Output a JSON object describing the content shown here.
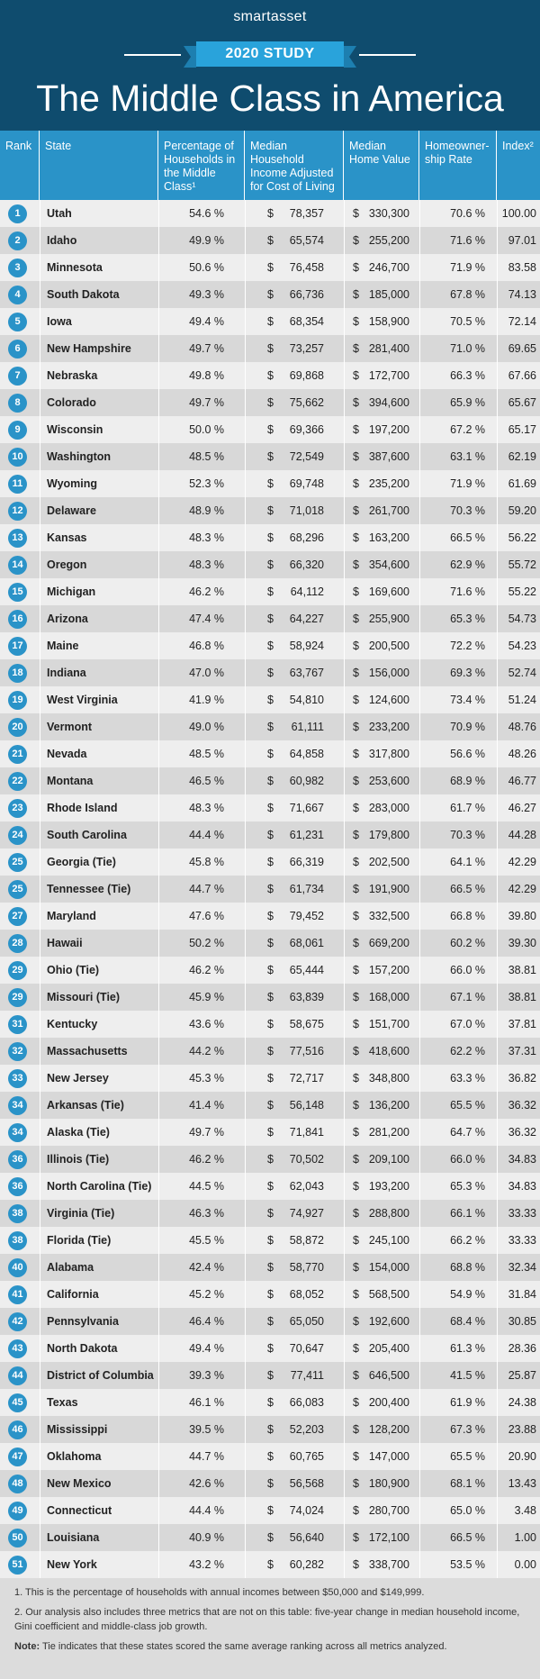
{
  "header": {
    "brand": "smartasset",
    "badge": "2020 STUDY",
    "title": "The Middle Class in America"
  },
  "columns": {
    "rank": "Rank",
    "state": "State",
    "pct": "Percentage of Households in the Middle Class¹",
    "income": "Median Household Income Adjusted for Cost of Living",
    "home": "Median Home Value",
    "own": "Homeowner- ship Rate",
    "index": "Index²"
  },
  "colors": {
    "header_bg": "#0f4c6e",
    "accent": "#2a93c8",
    "badge": "#29a3db"
  },
  "rows": [
    {
      "rank": "1",
      "state": "Utah",
      "pct": "54.6 %",
      "income": "78,357",
      "home": "330,300",
      "own": "70.6 %",
      "index": "100.00"
    },
    {
      "rank": "2",
      "state": "Idaho",
      "pct": "49.9 %",
      "income": "65,574",
      "home": "255,200",
      "own": "71.6 %",
      "index": "97.01"
    },
    {
      "rank": "3",
      "state": "Minnesota",
      "pct": "50.6 %",
      "income": "76,458",
      "home": "246,700",
      "own": "71.9 %",
      "index": "83.58"
    },
    {
      "rank": "4",
      "state": "South Dakota",
      "pct": "49.3 %",
      "income": "66,736",
      "home": "185,000",
      "own": "67.8 %",
      "index": "74.13"
    },
    {
      "rank": "5",
      "state": "Iowa",
      "pct": "49.4 %",
      "income": "68,354",
      "home": "158,900",
      "own": "70.5 %",
      "index": "72.14"
    },
    {
      "rank": "6",
      "state": "New Hampshire",
      "pct": "49.7 %",
      "income": "73,257",
      "home": "281,400",
      "own": "71.0 %",
      "index": "69.65"
    },
    {
      "rank": "7",
      "state": "Nebraska",
      "pct": "49.8 %",
      "income": "69,868",
      "home": "172,700",
      "own": "66.3 %",
      "index": "67.66"
    },
    {
      "rank": "8",
      "state": "Colorado",
      "pct": "49.7 %",
      "income": "75,662",
      "home": "394,600",
      "own": "65.9 %",
      "index": "65.67"
    },
    {
      "rank": "9",
      "state": "Wisconsin",
      "pct": "50.0 %",
      "income": "69,366",
      "home": "197,200",
      "own": "67.2 %",
      "index": "65.17"
    },
    {
      "rank": "10",
      "state": "Washington",
      "pct": "48.5 %",
      "income": "72,549",
      "home": "387,600",
      "own": "63.1 %",
      "index": "62.19"
    },
    {
      "rank": "11",
      "state": "Wyoming",
      "pct": "52.3 %",
      "income": "69,748",
      "home": "235,200",
      "own": "71.9 %",
      "index": "61.69"
    },
    {
      "rank": "12",
      "state": "Delaware",
      "pct": "48.9 %",
      "income": "71,018",
      "home": "261,700",
      "own": "70.3 %",
      "index": "59.20"
    },
    {
      "rank": "13",
      "state": "Kansas",
      "pct": "48.3 %",
      "income": "68,296",
      "home": "163,200",
      "own": "66.5 %",
      "index": "56.22"
    },
    {
      "rank": "14",
      "state": "Oregon",
      "pct": "48.3 %",
      "income": "66,320",
      "home": "354,600",
      "own": "62.9 %",
      "index": "55.72"
    },
    {
      "rank": "15",
      "state": "Michigan",
      "pct": "46.2 %",
      "income": "64,112",
      "home": "169,600",
      "own": "71.6 %",
      "index": "55.22"
    },
    {
      "rank": "16",
      "state": "Arizona",
      "pct": "47.4 %",
      "income": "64,227",
      "home": "255,900",
      "own": "65.3 %",
      "index": "54.73"
    },
    {
      "rank": "17",
      "state": "Maine",
      "pct": "46.8 %",
      "income": "58,924",
      "home": "200,500",
      "own": "72.2 %",
      "index": "54.23"
    },
    {
      "rank": "18",
      "state": "Indiana",
      "pct": "47.0 %",
      "income": "63,767",
      "home": "156,000",
      "own": "69.3 %",
      "index": "52.74"
    },
    {
      "rank": "19",
      "state": "West Virginia",
      "pct": "41.9 %",
      "income": "54,810",
      "home": "124,600",
      "own": "73.4 %",
      "index": "51.24"
    },
    {
      "rank": "20",
      "state": "Vermont",
      "pct": "49.0 %",
      "income": "61,111",
      "home": "233,200",
      "own": "70.9 %",
      "index": "48.76"
    },
    {
      "rank": "21",
      "state": "Nevada",
      "pct": "48.5 %",
      "income": "64,858",
      "home": "317,800",
      "own": "56.6 %",
      "index": "48.26"
    },
    {
      "rank": "22",
      "state": "Montana",
      "pct": "46.5 %",
      "income": "60,982",
      "home": "253,600",
      "own": "68.9 %",
      "index": "46.77"
    },
    {
      "rank": "23",
      "state": "Rhode Island",
      "pct": "48.3 %",
      "income": "71,667",
      "home": "283,000",
      "own": "61.7 %",
      "index": "46.27"
    },
    {
      "rank": "24",
      "state": "South Carolina",
      "pct": "44.4 %",
      "income": "61,231",
      "home": "179,800",
      "own": "70.3 %",
      "index": "44.28"
    },
    {
      "rank": "25",
      "state": "Georgia (Tie)",
      "pct": "45.8 %",
      "income": "66,319",
      "home": "202,500",
      "own": "64.1 %",
      "index": "42.29"
    },
    {
      "rank": "25",
      "state": "Tennessee (Tie)",
      "pct": "44.7 %",
      "income": "61,734",
      "home": "191,900",
      "own": "66.5 %",
      "index": "42.29"
    },
    {
      "rank": "27",
      "state": "Maryland",
      "pct": "47.6 %",
      "income": "79,452",
      "home": "332,500",
      "own": "66.8 %",
      "index": "39.80"
    },
    {
      "rank": "28",
      "state": "Hawaii",
      "pct": "50.2 %",
      "income": "68,061",
      "home": "669,200",
      "own": "60.2 %",
      "index": "39.30"
    },
    {
      "rank": "29",
      "state": "Ohio (Tie)",
      "pct": "46.2 %",
      "income": "65,444",
      "home": "157,200",
      "own": "66.0 %",
      "index": "38.81"
    },
    {
      "rank": "29",
      "state": "Missouri (Tie)",
      "pct": "45.9 %",
      "income": "63,839",
      "home": "168,000",
      "own": "67.1 %",
      "index": "38.81"
    },
    {
      "rank": "31",
      "state": "Kentucky",
      "pct": "43.6 %",
      "income": "58,675",
      "home": "151,700",
      "own": "67.0 %",
      "index": "37.81"
    },
    {
      "rank": "32",
      "state": "Massachusetts",
      "pct": "44.2 %",
      "income": "77,516",
      "home": "418,600",
      "own": "62.2 %",
      "index": "37.31"
    },
    {
      "rank": "33",
      "state": "New Jersey",
      "pct": "45.3 %",
      "income": "72,717",
      "home": "348,800",
      "own": "63.3 %",
      "index": "36.82"
    },
    {
      "rank": "34",
      "state": "Arkansas (Tie)",
      "pct": "41.4 %",
      "income": "56,148",
      "home": "136,200",
      "own": "65.5 %",
      "index": "36.32"
    },
    {
      "rank": "34",
      "state": "Alaska (Tie)",
      "pct": "49.7 %",
      "income": "71,841",
      "home": "281,200",
      "own": "64.7 %",
      "index": "36.32"
    },
    {
      "rank": "36",
      "state": "Illinois (Tie)",
      "pct": "46.2 %",
      "income": "70,502",
      "home": "209,100",
      "own": "66.0 %",
      "index": "34.83"
    },
    {
      "rank": "36",
      "state": "North Carolina (Tie)",
      "pct": "44.5 %",
      "income": "62,043",
      "home": "193,200",
      "own": "65.3 %",
      "index": "34.83"
    },
    {
      "rank": "38",
      "state": "Virginia (Tie)",
      "pct": "46.3 %",
      "income": "74,927",
      "home": "288,800",
      "own": "66.1 %",
      "index": "33.33"
    },
    {
      "rank": "38",
      "state": "Florida (Tie)",
      "pct": "45.5 %",
      "income": "58,872",
      "home": "245,100",
      "own": "66.2 %",
      "index": "33.33"
    },
    {
      "rank": "40",
      "state": "Alabama",
      "pct": "42.4 %",
      "income": "58,770",
      "home": "154,000",
      "own": "68.8 %",
      "index": "32.34"
    },
    {
      "rank": "41",
      "state": "California",
      "pct": "45.2 %",
      "income": "68,052",
      "home": "568,500",
      "own": "54.9 %",
      "index": "31.84"
    },
    {
      "rank": "42",
      "state": "Pennsylvania",
      "pct": "46.4 %",
      "income": "65,050",
      "home": "192,600",
      "own": "68.4 %",
      "index": "30.85"
    },
    {
      "rank": "43",
      "state": "North Dakota",
      "pct": "49.4 %",
      "income": "70,647",
      "home": "205,400",
      "own": "61.3 %",
      "index": "28.36"
    },
    {
      "rank": "44",
      "state": "District of Columbia",
      "pct": "39.3 %",
      "income": "77,411",
      "home": "646,500",
      "own": "41.5 %",
      "index": "25.87"
    },
    {
      "rank": "45",
      "state": "Texas",
      "pct": "46.1 %",
      "income": "66,083",
      "home": "200,400",
      "own": "61.9 %",
      "index": "24.38"
    },
    {
      "rank": "46",
      "state": "Mississippi",
      "pct": "39.5 %",
      "income": "52,203",
      "home": "128,200",
      "own": "67.3 %",
      "index": "23.88"
    },
    {
      "rank": "47",
      "state": "Oklahoma",
      "pct": "44.7 %",
      "income": "60,765",
      "home": "147,000",
      "own": "65.5 %",
      "index": "20.90"
    },
    {
      "rank": "48",
      "state": "New Mexico",
      "pct": "42.6 %",
      "income": "56,568",
      "home": "180,900",
      "own": "68.1 %",
      "index": "13.43"
    },
    {
      "rank": "49",
      "state": "Connecticut",
      "pct": "44.4 %",
      "income": "74,024",
      "home": "280,700",
      "own": "65.0 %",
      "index": "3.48"
    },
    {
      "rank": "50",
      "state": "Louisiana",
      "pct": "40.9 %",
      "income": "56,640",
      "home": "172,100",
      "own": "66.5 %",
      "index": "1.00"
    },
    {
      "rank": "51",
      "state": "New York",
      "pct": "43.2 %",
      "income": "60,282",
      "home": "338,700",
      "own": "53.5 %",
      "index": "0.00"
    }
  ],
  "currency": "$",
  "footnotes": {
    "note1": "1.  This is the percentage of households with annual incomes between $50,000 and $149,999.",
    "note2": "2.  Our analysis also includes three metrics that are not on this table: five-year change in median household income, Gini coefficient and middle-class job growth.",
    "note_label": "Note:",
    "note_text": " Tie indicates that these states scored the same average ranking across all metrics analyzed."
  }
}
